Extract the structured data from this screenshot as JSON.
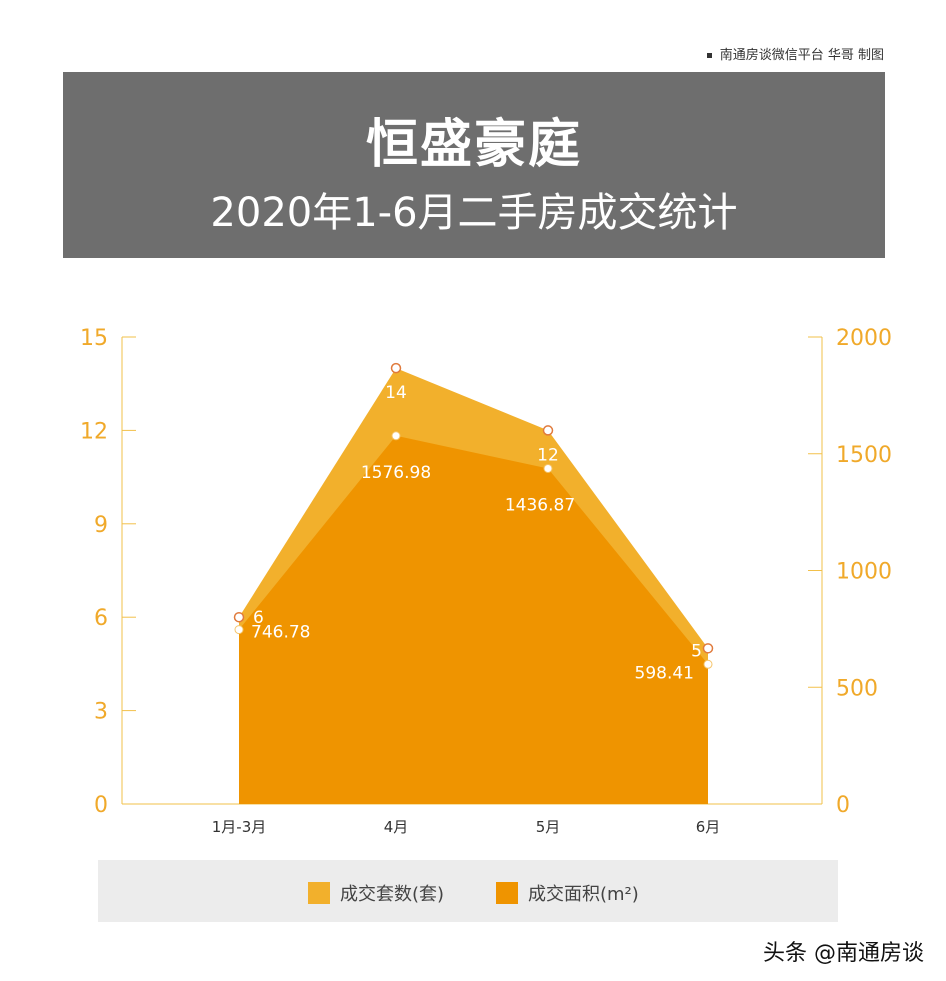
{
  "credit": "南通房谈微信平台 华哥 制图",
  "banner": {
    "title": "恒盛豪庭",
    "subtitle": "2020年1-6月二手房成交统计"
  },
  "watermark": "头条 @南通房谈",
  "colors": {
    "series1": "#f2b02c",
    "series2": "#ef9400",
    "axis": "#f2c04a",
    "marker": "#e07a3c",
    "tick": "#f0a92a"
  },
  "chart_data": {
    "type": "area",
    "categories": [
      "1月-3月",
      "4月",
      "5月",
      "6月"
    ],
    "series": [
      {
        "name": "成交套数(套)",
        "axis": "left",
        "values": [
          6,
          14,
          12,
          5
        ],
        "labels": [
          "6",
          "14",
          "12",
          "5"
        ]
      },
      {
        "name": "成交面积(m²)",
        "axis": "right",
        "values": [
          746.78,
          1576.98,
          1436.87,
          598.41
        ],
        "labels": [
          "746.78",
          "1576.98",
          "1436.87",
          "598.41"
        ]
      }
    ],
    "y_left": {
      "min": 0,
      "max": 15,
      "ticks": [
        "0",
        "3",
        "6",
        "9",
        "12",
        "15"
      ]
    },
    "y_right": {
      "min": 0,
      "max": 2000,
      "ticks": [
        "0",
        "500",
        "1000",
        "1500",
        "2000"
      ]
    },
    "legend_position": "bottom"
  }
}
